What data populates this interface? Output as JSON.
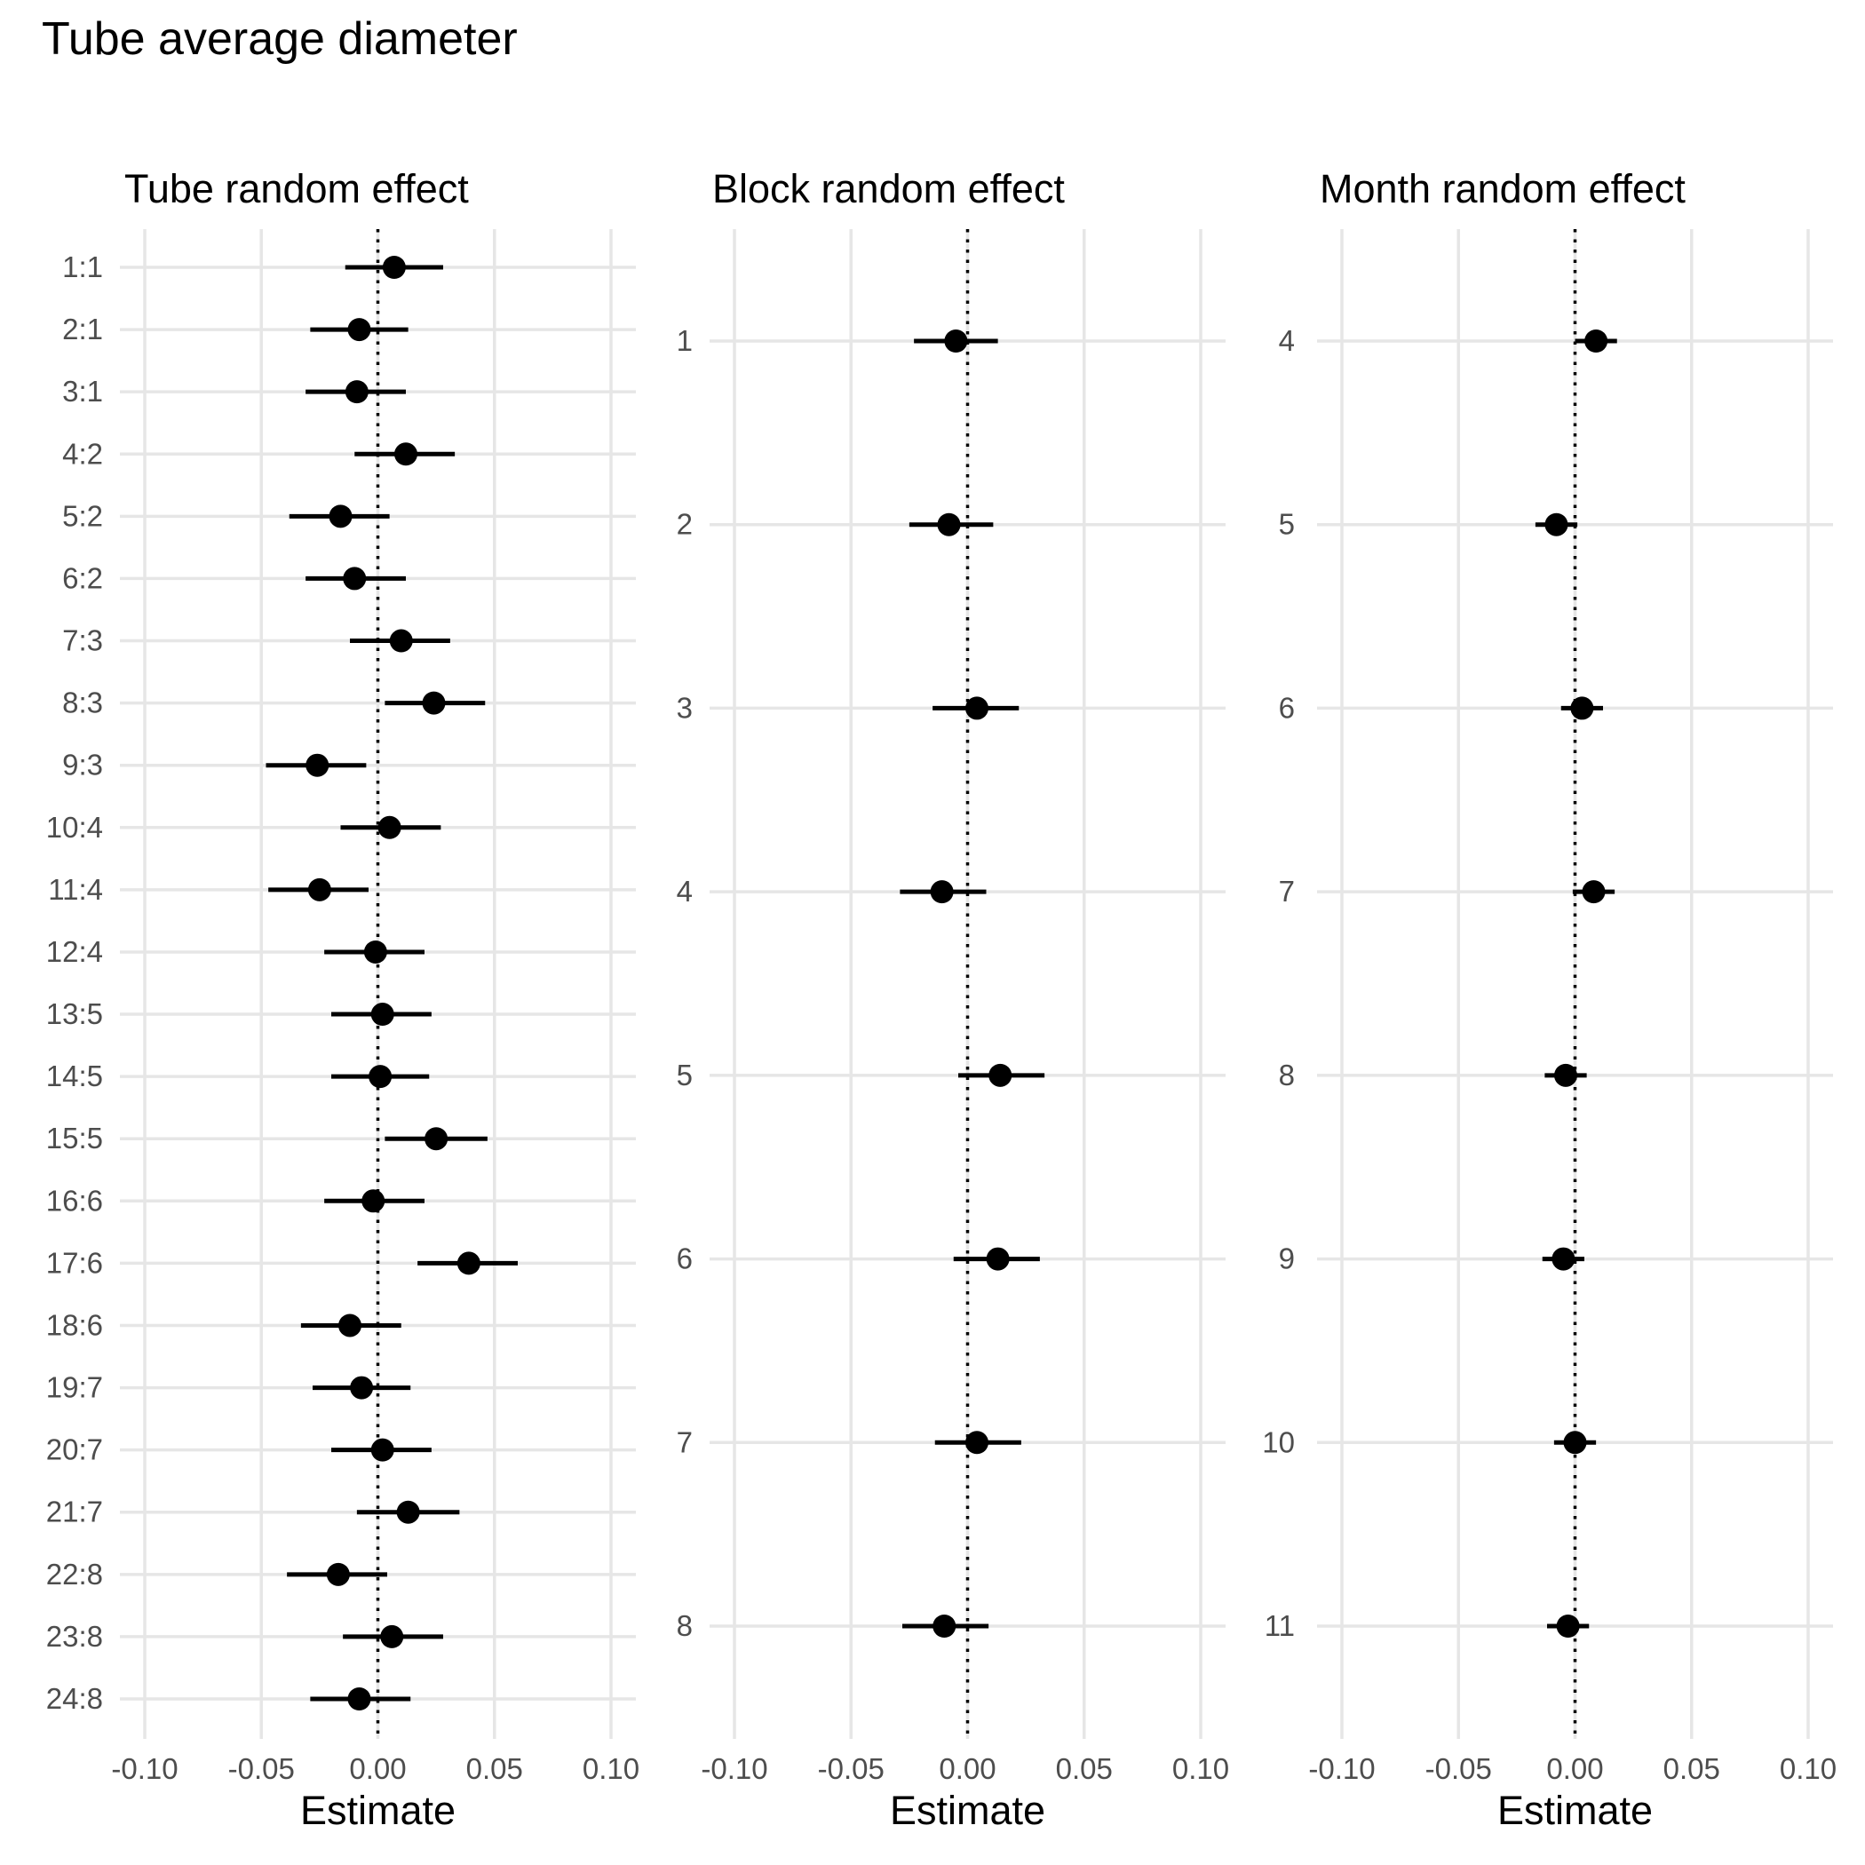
{
  "title": "Tube average diameter",
  "chart_data": [
    {
      "type": "forest",
      "title": "Tube random effect",
      "xlabel": "Estimate",
      "xlim": [
        -0.1,
        0.1
      ],
      "xticks": [
        "-0.10",
        "-0.05",
        "0.00",
        "0.05",
        "0.10"
      ],
      "xtick_values": [
        -0.1,
        -0.05,
        0,
        0.05,
        0.1
      ],
      "reference_line": 0,
      "categories": [
        "1:1",
        "2:1",
        "3:1",
        "4:2",
        "5:2",
        "6:2",
        "7:3",
        "8:3",
        "9:3",
        "10:4",
        "11:4",
        "12:4",
        "13:5",
        "14:5",
        "15:5",
        "16:6",
        "17:6",
        "18:6",
        "19:7",
        "20:7",
        "21:7",
        "22:8",
        "23:8",
        "24:8"
      ],
      "estimates": [
        0.007,
        -0.008,
        -0.009,
        0.012,
        -0.016,
        -0.01,
        0.01,
        0.024,
        -0.026,
        0.005,
        -0.025,
        -0.001,
        0.002,
        0.001,
        0.025,
        -0.002,
        0.039,
        -0.012,
        -0.007,
        0.002,
        0.013,
        -0.017,
        0.006,
        -0.008
      ],
      "lower": [
        -0.014,
        -0.029,
        -0.031,
        -0.01,
        -0.038,
        -0.031,
        -0.012,
        0.003,
        -0.048,
        -0.016,
        -0.047,
        -0.023,
        -0.02,
        -0.02,
        0.003,
        -0.023,
        0.017,
        -0.033,
        -0.028,
        -0.02,
        -0.009,
        -0.039,
        -0.015,
        -0.029
      ],
      "upper": [
        0.028,
        0.013,
        0.012,
        0.033,
        0.005,
        0.012,
        0.031,
        0.046,
        -0.005,
        0.027,
        -0.004,
        0.02,
        0.023,
        0.022,
        0.047,
        0.02,
        0.06,
        0.01,
        0.014,
        0.023,
        0.035,
        0.004,
        0.028,
        0.014
      ]
    },
    {
      "type": "forest",
      "title": "Block random effect",
      "xlabel": "Estimate",
      "xlim": [
        -0.1,
        0.1
      ],
      "xticks": [
        "-0.10",
        "-0.05",
        "0.00",
        "0.05",
        "0.10"
      ],
      "xtick_values": [
        -0.1,
        -0.05,
        0,
        0.05,
        0.1
      ],
      "reference_line": 0,
      "categories": [
        "1",
        "2",
        "3",
        "4",
        "5",
        "6",
        "7",
        "8"
      ],
      "estimates": [
        -0.005,
        -0.008,
        0.004,
        -0.011,
        0.014,
        0.013,
        0.004,
        -0.01
      ],
      "lower": [
        -0.023,
        -0.025,
        -0.015,
        -0.029,
        -0.004,
        -0.006,
        -0.014,
        -0.028
      ],
      "upper": [
        0.013,
        0.011,
        0.022,
        0.008,
        0.033,
        0.031,
        0.023,
        0.009
      ]
    },
    {
      "type": "forest",
      "title": "Month random effect",
      "xlabel": "",
      "xlim": [
        -0.1,
        0.1
      ],
      "xticks": [
        "-0.10",
        "-0.05",
        "0.00",
        "0.05",
        "0.10"
      ],
      "xtick_values": [
        -0.1,
        -0.05,
        0,
        0.05,
        0.1
      ],
      "reference_line": 0,
      "categories": [
        "4",
        "5",
        "6",
        "7",
        "8",
        "9",
        "10",
        "11"
      ],
      "estimates": [
        0.009,
        -0.008,
        0.003,
        0.008,
        -0.004,
        -0.005,
        0.0,
        -0.003
      ],
      "lower": [
        0.0,
        -0.017,
        -0.006,
        -0.001,
        -0.013,
        -0.014,
        -0.009,
        -0.012
      ],
      "upper": [
        0.018,
        0.001,
        0.012,
        0.017,
        0.005,
        0.004,
        0.009,
        0.006
      ]
    }
  ],
  "month_panel_xlabel": "Estimate"
}
